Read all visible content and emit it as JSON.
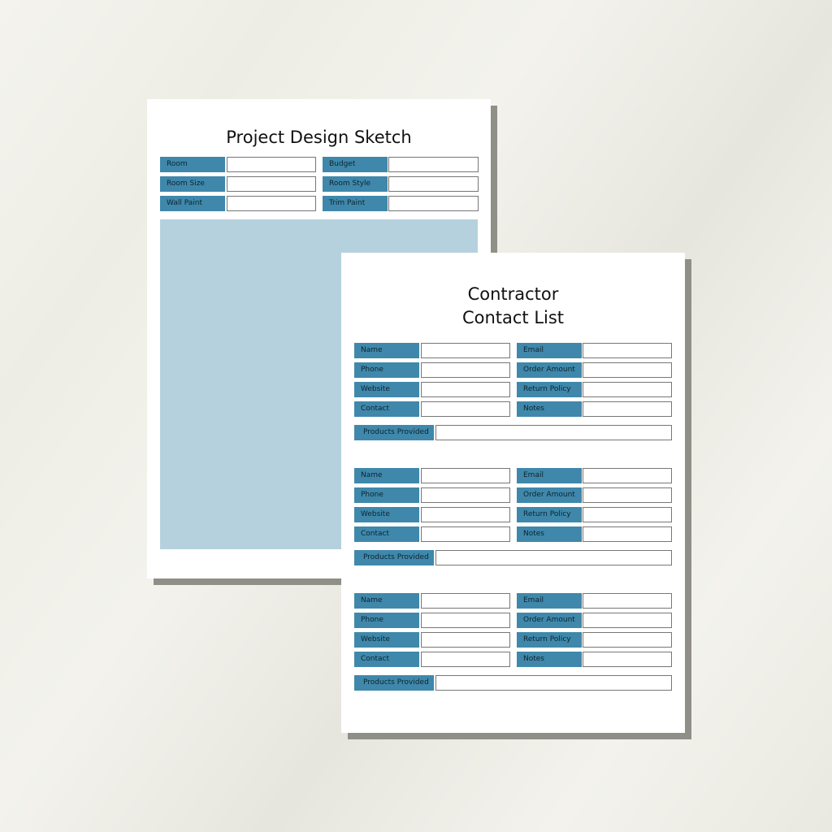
{
  "colors": {
    "label_fill": "#3f88ab",
    "sketch_fill": "#b5d1de",
    "background": "#eeede5",
    "shadow": "#8f8f88"
  },
  "design_sketch": {
    "title": "Project Design Sketch",
    "rows": [
      {
        "left": "Room",
        "right": "Budget"
      },
      {
        "left": "Room Size",
        "right": "Room Style"
      },
      {
        "left": "Wall Paint",
        "right": "Trim Paint"
      }
    ]
  },
  "contact_list": {
    "title_line1": "Contractor",
    "title_line2": "Contact List",
    "blocks": [
      {
        "rows": [
          {
            "left": "Name",
            "right": "Email"
          },
          {
            "left": "Phone",
            "right": "Order Amount"
          },
          {
            "left": "Website",
            "right": "Return Policy"
          },
          {
            "left": "Contact",
            "right": "Notes"
          }
        ],
        "wide": "Products Provided"
      },
      {
        "rows": [
          {
            "left": "Name",
            "right": "Email"
          },
          {
            "left": "Phone",
            "right": "Order Amount"
          },
          {
            "left": "Website",
            "right": "Return Policy"
          },
          {
            "left": "Contact",
            "right": "Notes"
          }
        ],
        "wide": "Products Provided"
      },
      {
        "rows": [
          {
            "left": "Name",
            "right": "Email"
          },
          {
            "left": "Phone",
            "right": "Order Amount"
          },
          {
            "left": "Website",
            "right": "Return Policy"
          },
          {
            "left": "Contact",
            "right": "Notes"
          }
        ],
        "wide": "Products Provided"
      }
    ]
  }
}
